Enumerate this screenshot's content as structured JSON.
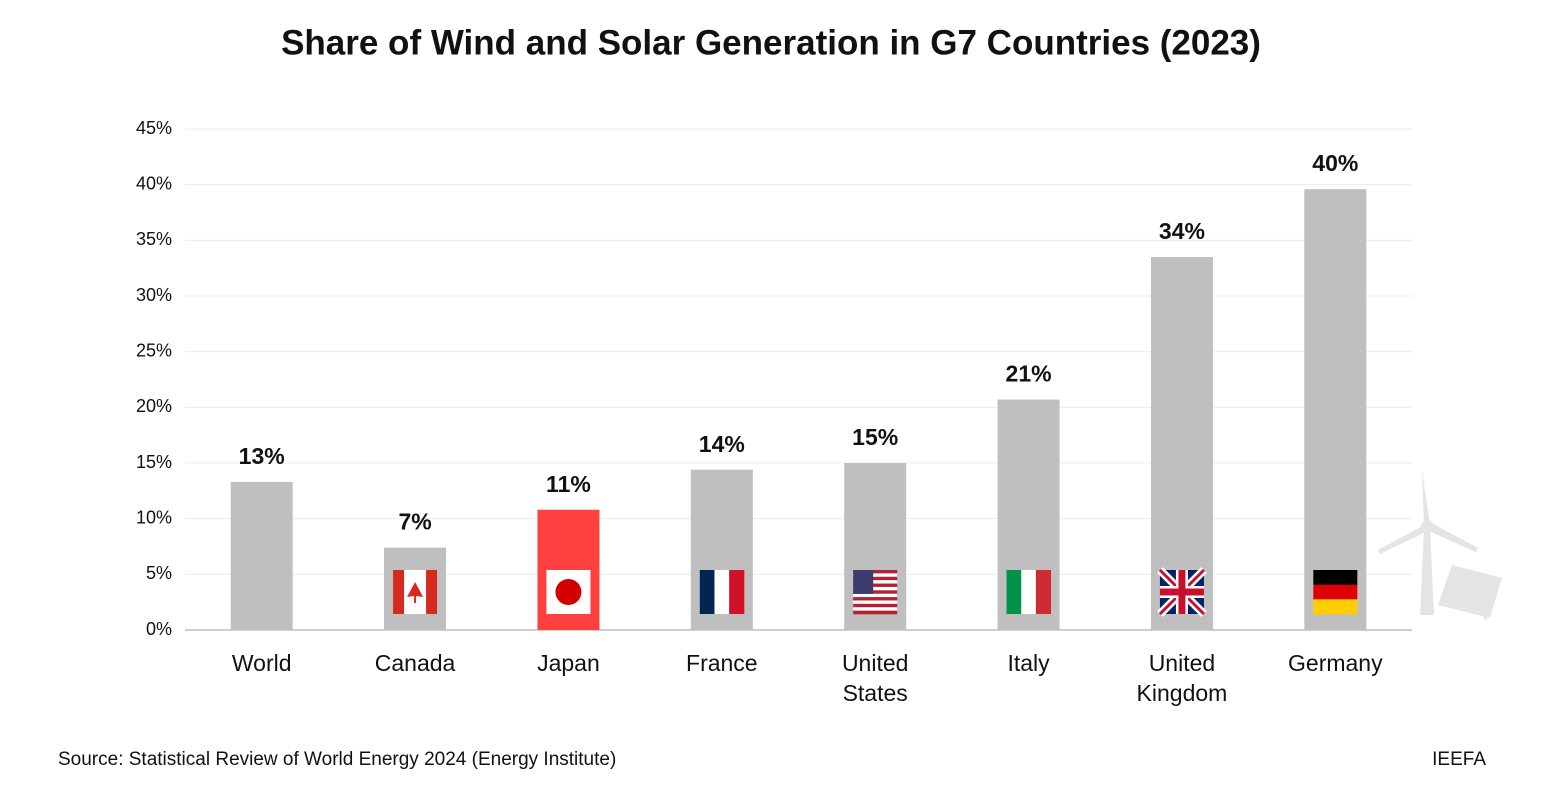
{
  "chart_data": {
    "type": "bar",
    "title": "Share of Wind and Solar Generation in G7 Countries (2023)",
    "categories": [
      "World",
      "Canada",
      "Japan",
      "France",
      "United States",
      "Italy",
      "United Kingdom",
      "Germany"
    ],
    "values": [
      13.3,
      7.4,
      10.8,
      14.4,
      15.0,
      20.7,
      33.5,
      39.6
    ],
    "value_labels": [
      "13%",
      "7%",
      "11%",
      "14%",
      "15%",
      "21%",
      "34%",
      "40%"
    ],
    "colors": [
      "#bfbfbf",
      "#bfbfbf",
      "#ff4040",
      "#bfbfbf",
      "#bfbfbf",
      "#bfbfbf",
      "#bfbfbf",
      "#bfbfbf"
    ],
    "ylim": [
      0,
      45
    ],
    "yticks": [
      {
        "value": 0,
        "label": "0%"
      },
      {
        "value": 5,
        "label": "5%"
      },
      {
        "value": 10,
        "label": "10%"
      },
      {
        "value": 15,
        "label": "15%"
      },
      {
        "value": 20,
        "label": "20%"
      },
      {
        "value": 25,
        "label": "25%"
      },
      {
        "value": 30,
        "label": "30%"
      },
      {
        "value": 35,
        "label": "35%"
      },
      {
        "value": 40,
        "label": "40%"
      },
      {
        "value": 45,
        "label": "45%"
      }
    ],
    "grid": true,
    "source": "Source: Statistical Review of World Energy 2024 (Energy Institute)",
    "brand": "IEEFA"
  }
}
